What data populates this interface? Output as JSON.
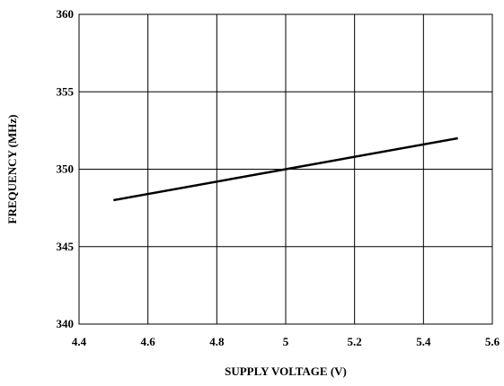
{
  "chart_data": {
    "type": "line",
    "title": "",
    "xlabel": "SUPPLY VOLTAGE (V)",
    "ylabel": "FREQUENCY (MHz)",
    "xlim": [
      4.4,
      5.6
    ],
    "ylim": [
      340,
      360
    ],
    "x_ticks": [
      4.4,
      4.6,
      4.8,
      5.0,
      5.2,
      5.4,
      5.6
    ],
    "x_tick_labels": [
      "4.4",
      "4.6",
      "4.8",
      "5",
      "5.2",
      "5.4",
      "5.6"
    ],
    "y_ticks": [
      340,
      345,
      350,
      355,
      360
    ],
    "y_tick_labels": [
      "340",
      "345",
      "350",
      "355",
      "360"
    ],
    "grid": true,
    "legend": "none",
    "series": [
      {
        "color": "#000000",
        "x": [
          4.5,
          5.0,
          5.5
        ],
        "y": [
          348,
          350,
          352
        ]
      }
    ]
  }
}
